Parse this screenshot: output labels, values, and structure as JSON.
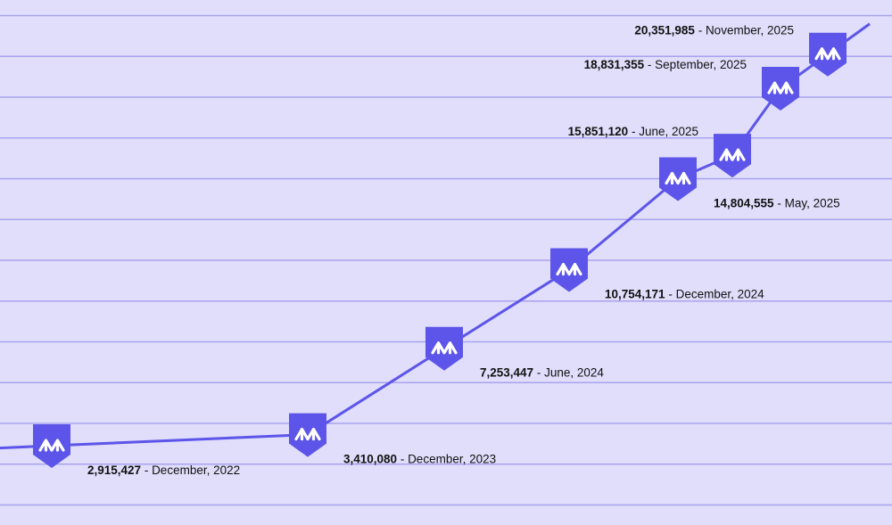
{
  "colors": {
    "background": "#E0DEFB",
    "gridline": "#A9A3EE",
    "line": "#5D55E9",
    "marker": "#5D55E9",
    "marker_icon": "#FFFFFF",
    "text": "#111111"
  },
  "marker_icon": "arrow-m-logo-icon",
  "chart_data": {
    "type": "line",
    "title": "",
    "xlabel": "",
    "ylabel": "",
    "grid": true,
    "legend": "none",
    "series": [
      {
        "values": [
          2915427,
          3410080,
          7253447,
          10754171,
          14804555,
          15851120,
          18831355,
          20351985
        ]
      }
    ],
    "points": [
      {
        "value": 2915427,
        "value_label": "2,915,427",
        "date_label": "December, 2022",
        "label_side": "below"
      },
      {
        "value": 3410080,
        "value_label": "3,410,080",
        "date_label": "December, 2023",
        "label_side": "below"
      },
      {
        "value": 7253447,
        "value_label": "7,253,447",
        "date_label": "June, 2024",
        "label_side": "below"
      },
      {
        "value": 10754171,
        "value_label": "10,754,171",
        "date_label": "December, 2024",
        "label_side": "below"
      },
      {
        "value": 14804555,
        "value_label": "14,804,555",
        "date_label": "May, 2025",
        "label_side": "below"
      },
      {
        "value": 15851120,
        "value_label": "15,851,120",
        "date_label": "June, 2025",
        "label_side": "left"
      },
      {
        "value": 18831355,
        "value_label": "18,831,355",
        "date_label": "September, 2025",
        "label_side": "left"
      },
      {
        "value": 20351985,
        "value_label": "20,351,985",
        "date_label": "November, 2025",
        "label_side": "left"
      }
    ]
  }
}
